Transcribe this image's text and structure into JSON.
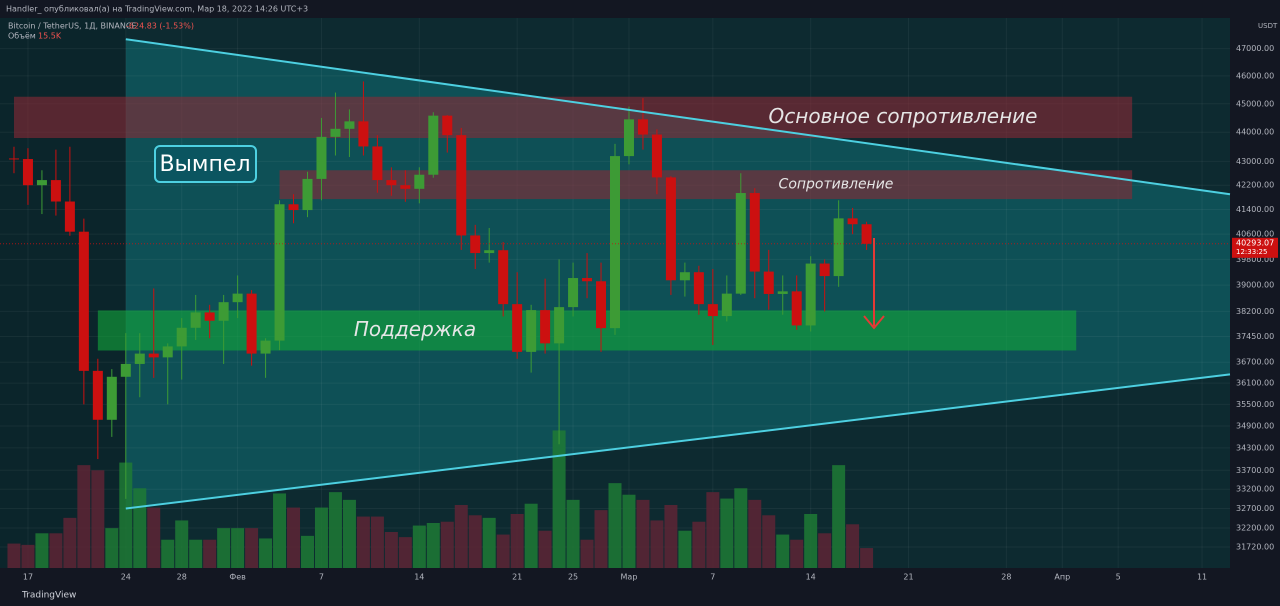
{
  "header": {
    "publisher": "Handler_ опубликовал(а) на TradingView.com, Мар 18, 2022 14:26 UTC+3",
    "footer": "TradingView"
  },
  "chart_data": {
    "type": "candlestick",
    "symbol": "Bitcoin / TetherUS, 1Д, BINANCE",
    "change": "-624.83 (-1.53%)",
    "volume_name": "Объём",
    "volume_label": "15.5K",
    "currency": "USDT",
    "countdown": "12:33:25",
    "up_color": "#3d9b35",
    "down_color": "#cc1010",
    "volume_up_color": "#1f7a35",
    "volume_down_color": "#5e2535",
    "log": true,
    "grid": true,
    "xlim": [
      "2022-01-15",
      "2022-04-13"
    ],
    "ylim": [
      31200,
      48150
    ],
    "vlim": [
      0,
      140
    ],
    "yticks": [
      {
        "value": 47000,
        "label": "47000.00"
      },
      {
        "value": 46000,
        "label": "46000.00"
      },
      {
        "value": 45000,
        "label": "45000.00"
      },
      {
        "value": 44000,
        "label": "44000.00"
      },
      {
        "value": 43000,
        "label": "43000.00"
      },
      {
        "value": 42200,
        "label": "42200.00"
      },
      {
        "value": 41400,
        "label": "41400.00"
      },
      {
        "value": 40600,
        "label": "40600.00"
      },
      {
        "value": 39800,
        "label": "39800.00"
      },
      {
        "value": 39000,
        "label": "39000.00"
      },
      {
        "value": 38200,
        "label": "38200.00"
      },
      {
        "value": 37450,
        "label": "37450.00"
      },
      {
        "value": 36700,
        "label": "36700.00"
      },
      {
        "value": 36100,
        "label": "36100.00"
      },
      {
        "value": 35500,
        "label": "35500.00"
      },
      {
        "value": 34900,
        "label": "34900.00"
      },
      {
        "value": 34300,
        "label": "34300.00"
      },
      {
        "value": 33700,
        "label": "33700.00"
      },
      {
        "value": 33200,
        "label": "33200.00"
      },
      {
        "value": 32700,
        "label": "32700.00"
      },
      {
        "value": 32200,
        "label": "32200.00"
      },
      {
        "value": 31720,
        "label": "31720.00"
      }
    ],
    "xticks": [
      {
        "value": "2022-01-17",
        "label": "17"
      },
      {
        "value": "2022-01-24",
        "label": "24"
      },
      {
        "value": "2022-01-28",
        "label": "28"
      },
      {
        "value": "2022-02-01",
        "label": "Фев"
      },
      {
        "value": "2022-02-07",
        "label": "7"
      },
      {
        "value": "2022-02-14",
        "label": "14"
      },
      {
        "value": "2022-02-21",
        "label": "21"
      },
      {
        "value": "2022-02-25",
        "label": "25"
      },
      {
        "value": "2022-03-01",
        "label": "Мар"
      },
      {
        "value": "2022-03-07",
        "label": "7"
      },
      {
        "value": "2022-03-14",
        "label": "14"
      },
      {
        "value": "2022-03-21",
        "label": "21"
      },
      {
        "value": "2022-03-28",
        "label": "28"
      },
      {
        "value": "2022-04-01",
        "label": "Апр"
      },
      {
        "value": "2022-04-05",
        "label": "5"
      },
      {
        "value": "2022-04-11",
        "label": "11"
      }
    ],
    "x": [
      "2022-01-16",
      "2022-01-17",
      "2022-01-18",
      "2022-01-19",
      "2022-01-20",
      "2022-01-21",
      "2022-01-22",
      "2022-01-23",
      "2022-01-24",
      "2022-01-25",
      "2022-01-26",
      "2022-01-27",
      "2022-01-28",
      "2022-01-29",
      "2022-01-30",
      "2022-01-31",
      "2022-02-01",
      "2022-02-02",
      "2022-02-03",
      "2022-02-04",
      "2022-02-05",
      "2022-02-06",
      "2022-02-07",
      "2022-02-08",
      "2022-02-09",
      "2022-02-10",
      "2022-02-11",
      "2022-02-12",
      "2022-02-13",
      "2022-02-14",
      "2022-02-15",
      "2022-02-16",
      "2022-02-17",
      "2022-02-18",
      "2022-02-19",
      "2022-02-20",
      "2022-02-21",
      "2022-02-22",
      "2022-02-23",
      "2022-02-24",
      "2022-02-25",
      "2022-02-26",
      "2022-02-27",
      "2022-02-28",
      "2022-03-01",
      "2022-03-02",
      "2022-03-03",
      "2022-03-04",
      "2022-03-05",
      "2022-03-06",
      "2022-03-07",
      "2022-03-08",
      "2022-03-09",
      "2022-03-10",
      "2022-03-11",
      "2022-03-12",
      "2022-03-13",
      "2022-03-14",
      "2022-03-15",
      "2022-03-16",
      "2022-03-17",
      "2022-03-18"
    ],
    "open": [
      43100,
      43080,
      42200,
      42370,
      41660,
      40680,
      36450,
      35070,
      36280,
      36650,
      36950,
      36840,
      37160,
      37710,
      38170,
      37920,
      38480,
      38740,
      36950,
      37330,
      41570,
      41380,
      42410,
      43840,
      44120,
      44380,
      43510,
      42370,
      42200,
      42080,
      42550,
      44580,
      43900,
      40560,
      40000,
      40090,
      38420,
      37000,
      38240,
      37250,
      38330,
      39220,
      39120,
      37700,
      43180,
      44450,
      43920,
      42460,
      39150,
      39400,
      38420,
      38060,
      38740,
      41940,
      39420,
      38730,
      38810,
      37780,
      39670,
      39280,
      41110,
      40920
    ],
    "high": [
      43500,
      43450,
      42700,
      43400,
      43500,
      41100,
      36800,
      36500,
      37550,
      37550,
      38900,
      37250,
      38000,
      38700,
      38400,
      38700,
      39300,
      38850,
      37400,
      41700,
      41900,
      42650,
      44500,
      45400,
      44800,
      45800,
      43900,
      42800,
      42700,
      42800,
      44700,
      44600,
      44150,
      40900,
      40800,
      40350,
      39400,
      38400,
      39200,
      39800,
      39700,
      40000,
      39700,
      43600,
      44900,
      45200,
      44100,
      42500,
      39700,
      39600,
      39500,
      39300,
      42600,
      42100,
      40100,
      39300,
      39300,
      39900,
      39800,
      41700,
      41450,
      41000
    ],
    "low": [
      42600,
      41550,
      41250,
      41200,
      40550,
      35500,
      34000,
      34600,
      32950,
      35700,
      36250,
      35500,
      36200,
      37350,
      37400,
      36650,
      38000,
      36600,
      36250,
      37050,
      40950,
      41150,
      41700,
      43200,
      43150,
      43200,
      41950,
      41850,
      41650,
      41600,
      42450,
      43300,
      40100,
      39500,
      39700,
      38050,
      36800,
      36400,
      36950,
      34400,
      38050,
      38600,
      37000,
      37500,
      42900,
      43400,
      41900,
      38700,
      38650,
      38100,
      37200,
      37900,
      38700,
      38600,
      38250,
      38100,
      37650,
      37600,
      38200,
      38950,
      40600,
      40100
    ],
    "close": [
      43080,
      42200,
      42370,
      41660,
      40680,
      36450,
      35070,
      36280,
      36650,
      36950,
      36840,
      37160,
      37710,
      38170,
      37920,
      38480,
      38740,
      36950,
      37330,
      41570,
      41380,
      42410,
      43840,
      44120,
      44380,
      43510,
      42370,
      42200,
      42080,
      42550,
      44580,
      43900,
      40560,
      40000,
      40090,
      38420,
      37000,
      38240,
      37250,
      38330,
      39220,
      39120,
      37700,
      43180,
      44450,
      43920,
      42460,
      39150,
      39400,
      38420,
      38060,
      38740,
      41940,
      39420,
      38730,
      38810,
      37780,
      39670,
      39280,
      41110,
      40920,
      40293.07
    ],
    "volume": [
      19,
      18,
      27,
      27,
      39,
      80,
      76,
      31,
      82,
      62,
      47,
      22,
      37,
      22,
      22,
      31,
      31,
      31,
      23,
      58,
      47,
      25,
      47,
      59,
      53,
      40,
      40,
      28,
      24,
      33,
      35,
      36,
      49,
      41,
      39,
      26,
      42,
      50,
      29,
      107,
      53,
      22,
      45,
      66,
      57,
      53,
      37,
      49,
      29,
      36,
      59,
      54,
      62,
      53,
      41,
      26,
      22,
      42,
      27,
      80,
      34,
      15.5
    ],
    "zones": [
      {
        "label": "Основное сопротивление",
        "x": [
          "2022-01-16",
          "2022-04-06"
        ],
        "y": [
          43800,
          45250
        ],
        "color": "#8b2a35"
      },
      {
        "label": "Сопротивление",
        "x": [
          "2022-02-04",
          "2022-04-06"
        ],
        "y": [
          41740,
          42700
        ],
        "color": "#8b2a35"
      },
      {
        "label": "Поддержка",
        "x": [
          "2022-01-22",
          "2022-04-02"
        ],
        "y": [
          37040,
          38230
        ],
        "color": "#12a83a"
      }
    ],
    "pattern": {
      "label": "Вымпел",
      "color": "#4dd0e1",
      "upper": {
        "x": [
          "2022-01-24",
          "2022-04-13"
        ],
        "y": [
          47350,
          41900
        ]
      },
      "lower": {
        "x": [
          "2022-01-24",
          "2022-04-13"
        ],
        "y": [
          32700,
          36350
        ]
      }
    }
  }
}
